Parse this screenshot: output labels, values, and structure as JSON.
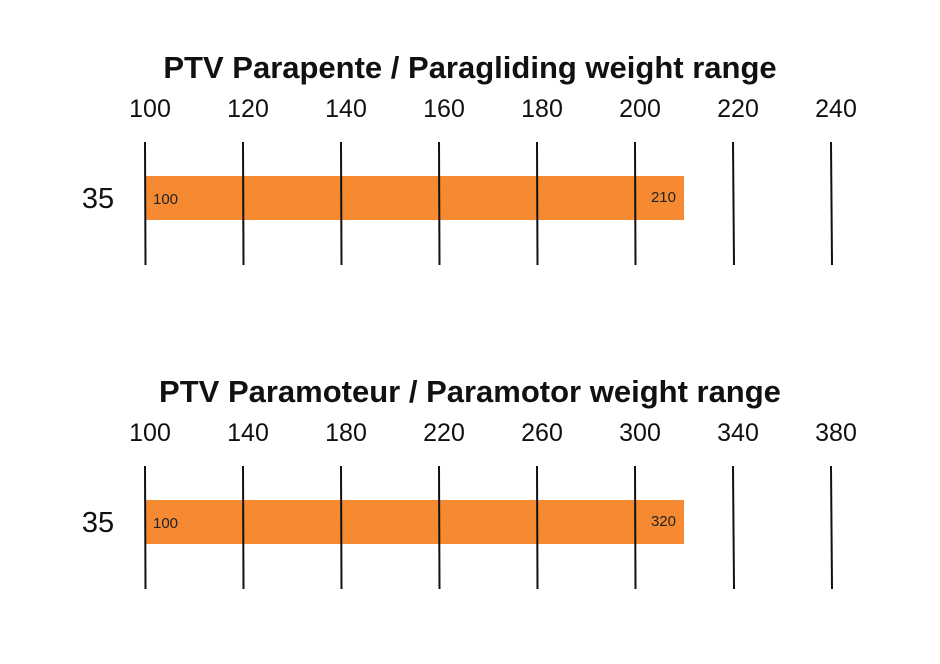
{
  "chart_data": [
    {
      "type": "bar",
      "orientation": "horizontal",
      "title": "PTV Parapente / Paragliding weight range",
      "xlabel": "",
      "ylabel": "",
      "categories": [
        "35"
      ],
      "ranges": [
        {
          "category": "35",
          "start": 100,
          "end": 210,
          "start_label": "100",
          "end_label": "210"
        }
      ],
      "x_ticks": [
        "100",
        "120",
        "140",
        "160",
        "180",
        "200",
        "220",
        "240"
      ],
      "xlim": [
        100,
        240
      ],
      "grid": true,
      "bar_color": "#F58A32"
    },
    {
      "type": "bar",
      "orientation": "horizontal",
      "title": "PTV Paramoteur / Paramotor weight range",
      "xlabel": "",
      "ylabel": "",
      "categories": [
        "35"
      ],
      "ranges": [
        {
          "category": "35",
          "start": 100,
          "end": 320,
          "start_label": "100",
          "end_label": "320"
        }
      ],
      "x_ticks": [
        "100",
        "140",
        "180",
        "220",
        "260",
        "300",
        "340",
        "380"
      ],
      "xlim": [
        100,
        380
      ],
      "grid": true,
      "bar_color": "#F58A32"
    }
  ]
}
